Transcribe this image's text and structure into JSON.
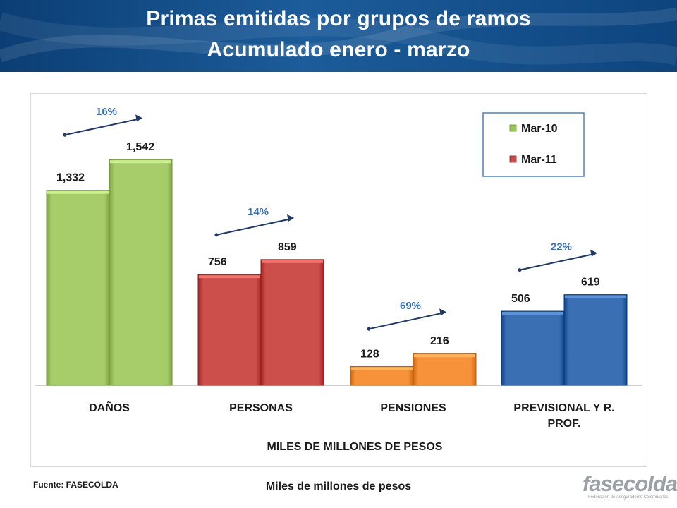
{
  "header": {
    "title_line1": "Primas emitidas por grupos de ramos",
    "title_line2": "Acumulado enero - marzo"
  },
  "footer": {
    "source": "Fuente: FASECOLDA",
    "units_note": "Miles de millones de pesos",
    "logo_text": "fasecolda",
    "logo_tagline": "Federación de Aseguradores Colombianos"
  },
  "colors": {
    "header_bg": "#0b3e74",
    "mar10": "#a7cc6a",
    "mar11_personas": "#cc4f4c",
    "mar10_pensiones": "#f7923a",
    "previsional": "#3b6fb4",
    "arrow": "#1f3864",
    "growth_label": "#3b6fb4"
  },
  "chart_data": {
    "type": "bar",
    "categories": [
      "DAÑOS",
      "PERSONAS",
      "PENSIONES",
      "PREVISIONAL Y R. PROF."
    ],
    "category_label_lines": [
      [
        "DAÑOS"
      ],
      [
        "PERSONAS"
      ],
      [
        "PENSIONES"
      ],
      [
        "PREVISIONAL Y R.",
        "PROF."
      ]
    ],
    "series": [
      {
        "name": "Mar-10",
        "values": [
          1332,
          756,
          128,
          506
        ],
        "labels": [
          "1,332",
          "756",
          "128",
          "506"
        ]
      },
      {
        "name": "Mar-11",
        "values": [
          1542,
          859,
          216,
          619
        ],
        "labels": [
          "1,542",
          "859",
          "216",
          "619"
        ]
      }
    ],
    "bar_colors": [
      [
        "#a7cc6a",
        "#a7cc6a"
      ],
      [
        "#cc4f4c",
        "#cc4f4c"
      ],
      [
        "#f7923a",
        "#f7923a"
      ],
      [
        "#3b6fb4",
        "#3b6fb4"
      ]
    ],
    "legend": {
      "position": "top-right",
      "entries": [
        {
          "name": "Mar-10",
          "color": "#9bc45a"
        },
        {
          "name": "Mar-11",
          "color": "#c0504d"
        }
      ]
    },
    "growth_labels": [
      "16%",
      "14%",
      "69%",
      "22%"
    ],
    "xlabel": "MILES DE MILLONES DE PESOS",
    "ylabel": "",
    "ylim": [
      0,
      1700
    ],
    "grid": false
  }
}
